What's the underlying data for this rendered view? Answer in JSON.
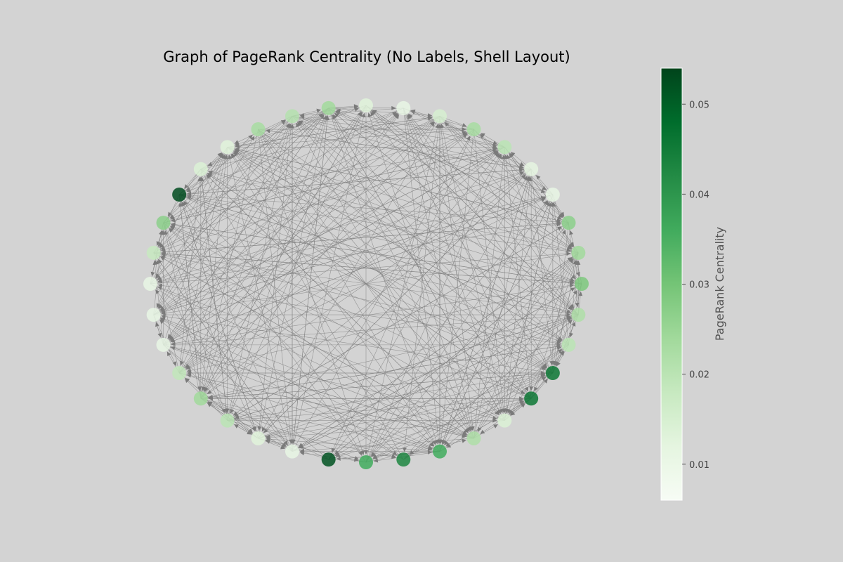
{
  "chart_data": {
    "type": "network",
    "title": "Graph of PageRank Centrality (No Labels, Shell Layout)",
    "layout": "shell",
    "node_labels_shown": false,
    "edge_color": "#808080",
    "node_count": 36,
    "pagerank": [
      0.029,
      0.024,
      0.027,
      0.011,
      0.012,
      0.02,
      0.023,
      0.015,
      0.011,
      0.013,
      0.024,
      0.021,
      0.023,
      0.013,
      0.014,
      0.053,
      0.027,
      0.018,
      0.011,
      0.011,
      0.011,
      0.019,
      0.024,
      0.02,
      0.013,
      0.011,
      0.052,
      0.036,
      0.043,
      0.036,
      0.022,
      0.014,
      0.046,
      0.046,
      0.02,
      0.022
    ],
    "colorbar": {
      "label": "PageRank Centrality",
      "colormap": "Greens",
      "range": [
        0.006,
        0.054
      ],
      "ticks": [
        0.01,
        0.02,
        0.03,
        0.04,
        0.05
      ],
      "tick_labels": [
        "0.01",
        "0.02",
        "0.03",
        "0.04",
        "0.05"
      ]
    }
  }
}
